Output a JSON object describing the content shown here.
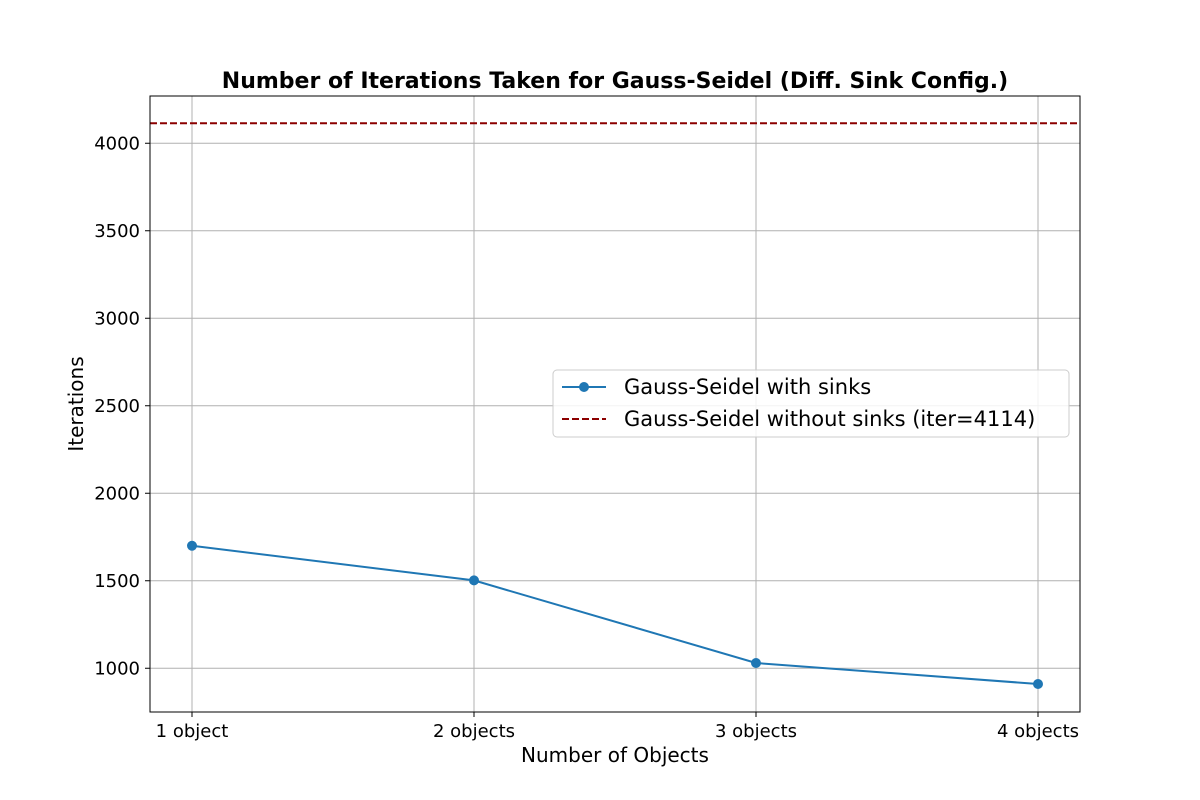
{
  "chart_data": {
    "type": "line",
    "title": "Number of Iterations Taken for Gauss-Seidel (Diff. Sink Config.)",
    "xlabel": "Number of Objects",
    "ylabel": "Iterations",
    "categories": [
      "1 object",
      "2 objects",
      "3 objects",
      "4 objects"
    ],
    "ylim": [
      750,
      4270
    ],
    "yticks": [
      1000,
      1500,
      2000,
      2500,
      3000,
      3500,
      4000
    ],
    "grid": true,
    "legend_position": "center-right",
    "series": [
      {
        "name": "Gauss-Seidel with sinks",
        "values": [
          1700,
          1502,
          1030,
          910
        ],
        "color": "#1f77b4",
        "style": "solid",
        "marker": "circle"
      }
    ],
    "reference_lines": [
      {
        "name": "Gauss-Seidel without sinks (iter=4114)",
        "value": 4114,
        "color": "#8b0000",
        "style": "dashed"
      }
    ]
  }
}
